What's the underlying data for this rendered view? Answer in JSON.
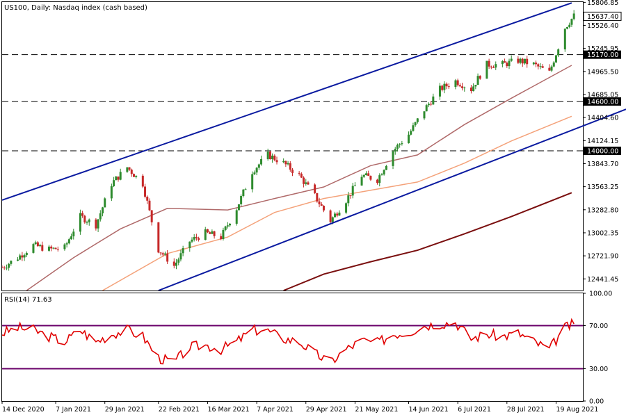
{
  "chart_data": [
    {
      "type": "candlestick",
      "title": "US100, Daily:  Nasdaq index (cash based)",
      "last_price": "15637.40",
      "ylim": [
        12300,
        15810
      ],
      "y_ticks": [
        "15806.85",
        "15526.40",
        "15245.95",
        "14965.50",
        "14685.05",
        "14404.60",
        "14124.15",
        "13843.70",
        "13563.25",
        "13282.80",
        "13002.35",
        "12721.90",
        "12441.45"
      ],
      "x_ticks": [
        "14 Dec 2020",
        "7 Jan 2021",
        "29 Jan 2021",
        "22 Feb 2021",
        "16 Mar 2021",
        "7 Apr 2021",
        "29 Apr 2021",
        "21 May 2021",
        "14 Jun 2021",
        "6 Jul 2021",
        "28 Jul 2021",
        "19 Aug 2021"
      ],
      "horizontal_levels": [
        {
          "value": 15170.0,
          "label": "15170.00"
        },
        {
          "value": 14600.0,
          "label": "14600.00"
        },
        {
          "value": 14000.0,
          "label": "14000.00"
        }
      ],
      "channel": {
        "upper": [
          {
            "x": "14 Dec 2020",
            "y": 13400
          },
          {
            "x": "26 Aug 2021",
            "y": 15800
          }
        ],
        "lower": [
          {
            "x": "22 Feb 2021",
            "y": 12300
          },
          {
            "x": "26 Aug 2021",
            "y": 14250
          }
        ]
      },
      "moving_averages": [
        {
          "color": "#b06a6a",
          "values": [
            {
              "x": "25 Dec 2020",
              "y": 12300
            },
            {
              "x": "15 Jan 2021",
              "y": 12700
            },
            {
              "x": "5 Feb 2021",
              "y": 13050
            },
            {
              "x": "26 Feb 2021",
              "y": 13300
            },
            {
              "x": "25 Mar 2021",
              "y": 13280
            },
            {
              "x": "15 Apr 2021",
              "y": 13420
            },
            {
              "x": "7 May 2021",
              "y": 13560
            },
            {
              "x": "28 May 2021",
              "y": 13820
            },
            {
              "x": "18 Jun 2021",
              "y": 13950
            },
            {
              "x": "9 Jul 2021",
              "y": 14320
            },
            {
              "x": "30 Jul 2021",
              "y": 14640
            },
            {
              "x": "26 Aug 2021",
              "y": 15040
            }
          ]
        },
        {
          "color": "#f4a27a",
          "values": [
            {
              "x": "28 Jan 2021",
              "y": 12300
            },
            {
              "x": "26 Feb 2021",
              "y": 12750
            },
            {
              "x": "25 Mar 2021",
              "y": 12950
            },
            {
              "x": "15 Apr 2021",
              "y": 13250
            },
            {
              "x": "7 May 2021",
              "y": 13420
            },
            {
              "x": "28 May 2021",
              "y": 13520
            },
            {
              "x": "18 Jun 2021",
              "y": 13620
            },
            {
              "x": "9 Jul 2021",
              "y": 13850
            },
            {
              "x": "30 Jul 2021",
              "y": 14120
            },
            {
              "x": "26 Aug 2021",
              "y": 14420
            }
          ]
        },
        {
          "color": "#7a0f0f",
          "values": [
            {
              "x": "19 Apr 2021",
              "y": 12300
            },
            {
              "x": "7 May 2021",
              "y": 12500
            },
            {
              "x": "28 May 2021",
              "y": 12650
            },
            {
              "x": "18 Jun 2021",
              "y": 12790
            },
            {
              "x": "9 Jul 2021",
              "y": 12990
            },
            {
              "x": "30 Jul 2021",
              "y": 13200
            },
            {
              "x": "26 Aug 2021",
              "y": 13490
            }
          ]
        }
      ],
      "series": [
        {
          "values": [
            {
              "x": "14 Dec 2020",
              "y": 12580
            },
            {
              "x": "21 Dec 2020",
              "y": 12700
            },
            {
              "x": "28 Dec 2020",
              "y": 12850
            },
            {
              "x": "4 Jan 2021",
              "y": 12800
            },
            {
              "x": "11 Jan 2021",
              "y": 12820
            },
            {
              "x": "18 Jan 2021",
              "y": 13200
            },
            {
              "x": "25 Jan 2021",
              "y": 13100
            },
            {
              "x": "1 Feb 2021",
              "y": 13600
            },
            {
              "x": "8 Feb 2021",
              "y": 13800
            },
            {
              "x": "15 Feb 2021",
              "y": 13600
            },
            {
              "x": "22 Feb 2021",
              "y": 12800
            },
            {
              "x": "1 Mar 2021",
              "y": 12600
            },
            {
              "x": "8 Mar 2021",
              "y": 12900
            },
            {
              "x": "15 Mar 2021",
              "y": 13000
            },
            {
              "x": "22 Mar 2021",
              "y": 12950
            },
            {
              "x": "29 Mar 2021",
              "y": 13300
            },
            {
              "x": "5 Apr 2021",
              "y": 13750
            },
            {
              "x": "12 Apr 2021",
              "y": 13950
            },
            {
              "x": "19 Apr 2021",
              "y": 13850
            },
            {
              "x": "26 Apr 2021",
              "y": 13700
            },
            {
              "x": "3 May 2021",
              "y": 13450
            },
            {
              "x": "10 May 2021",
              "y": 13150
            },
            {
              "x": "17 May 2021",
              "y": 13400
            },
            {
              "x": "24 May 2021",
              "y": 13700
            },
            {
              "x": "31 May 2021",
              "y": 13650
            },
            {
              "x": "7 Jun 2021",
              "y": 14000
            },
            {
              "x": "14 Jun 2021",
              "y": 14200
            },
            {
              "x": "21 Jun 2021",
              "y": 14500
            },
            {
              "x": "28 Jun 2021",
              "y": 14750
            },
            {
              "x": "5 Jul 2021",
              "y": 14850
            },
            {
              "x": "12 Jul 2021",
              "y": 14750
            },
            {
              "x": "19 Jul 2021",
              "y": 15050
            },
            {
              "x": "26 Jul 2021",
              "y": 15050
            },
            {
              "x": "2 Aug 2021",
              "y": 15100
            },
            {
              "x": "9 Aug 2021",
              "y": 15050
            },
            {
              "x": "16 Aug 2021",
              "y": 14950
            },
            {
              "x": "23 Aug 2021",
              "y": 15500
            },
            {
              "x": "27 Aug 2021",
              "y": 15640
            }
          ]
        }
      ]
    },
    {
      "type": "line",
      "title": "RSI(14) 71.63",
      "ylim": [
        0,
        100
      ],
      "y_ticks": [
        "100.00",
        "70.00",
        "30.00",
        "0.00"
      ],
      "levels": [
        70,
        30
      ],
      "series": [
        {
          "values": [
            {
              "x": "14 Dec 2020",
              "y": 63
            },
            {
              "x": "21 Dec 2020",
              "y": 68
            },
            {
              "x": "28 Dec 2020",
              "y": 66
            },
            {
              "x": "4 Jan 2021",
              "y": 60
            },
            {
              "x": "11 Jan 2021",
              "y": 55
            },
            {
              "x": "18 Jan 2021",
              "y": 66
            },
            {
              "x": "25 Jan 2021",
              "y": 55
            },
            {
              "x": "1 Feb 2021",
              "y": 62
            },
            {
              "x": "8 Feb 2021",
              "y": 66
            },
            {
              "x": "15 Feb 2021",
              "y": 60
            },
            {
              "x": "22 Feb 2021",
              "y": 40
            },
            {
              "x": "1 Mar 2021",
              "y": 36
            },
            {
              "x": "8 Mar 2021",
              "y": 50
            },
            {
              "x": "15 Mar 2021",
              "y": 52
            },
            {
              "x": "22 Mar 2021",
              "y": 48
            },
            {
              "x": "29 Mar 2021",
              "y": 55
            },
            {
              "x": "5 Apr 2021",
              "y": 66
            },
            {
              "x": "12 Apr 2021",
              "y": 65
            },
            {
              "x": "19 Apr 2021",
              "y": 58
            },
            {
              "x": "26 Apr 2021",
              "y": 55
            },
            {
              "x": "3 May 2021",
              "y": 44
            },
            {
              "x": "10 May 2021",
              "y": 36
            },
            {
              "x": "17 May 2021",
              "y": 48
            },
            {
              "x": "24 May 2021",
              "y": 56
            },
            {
              "x": "31 May 2021",
              "y": 54
            },
            {
              "x": "7 Jun 2021",
              "y": 62
            },
            {
              "x": "14 Jun 2021",
              "y": 64
            },
            {
              "x": "21 Jun 2021",
              "y": 70
            },
            {
              "x": "28 Jun 2021",
              "y": 72
            },
            {
              "x": "5 Jul 2021",
              "y": 73
            },
            {
              "x": "12 Jul 2021",
              "y": 58
            },
            {
              "x": "19 Jul 2021",
              "y": 62
            },
            {
              "x": "26 Jul 2021",
              "y": 60
            },
            {
              "x": "2 Aug 2021",
              "y": 63
            },
            {
              "x": "9 Aug 2021",
              "y": 55
            },
            {
              "x": "16 Aug 2021",
              "y": 48
            },
            {
              "x": "23 Aug 2021",
              "y": 68
            },
            {
              "x": "27 Aug 2021",
              "y": 71.63
            }
          ]
        }
      ]
    }
  ],
  "colors": {
    "bull": "#2e8b2e",
    "bear": "#c62828",
    "channel": "#0a1aa0",
    "rsi_line": "#e00000",
    "rsi_levels": "#6a006a",
    "level": "#000000"
  }
}
